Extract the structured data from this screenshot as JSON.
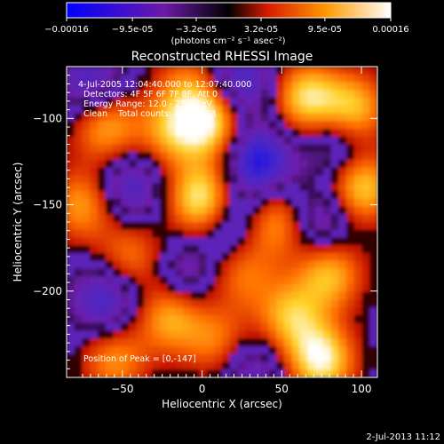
{
  "colorbar": {
    "tick_labels": [
      "-0.00016",
      "-9.5e-05",
      "-3.2e-05",
      "3.2e-05",
      "9.5e-05",
      "0.00016"
    ],
    "tick_values": [
      -0.00016,
      -9.5e-05,
      -3.2e-05,
      3.2e-05,
      9.5e-05,
      0.00016
    ],
    "range": [
      -0.00016,
      0.00016
    ],
    "units": "(photons cm⁻² s⁻¹ asec⁻²)",
    "colormap": [
      "#0000ff",
      "#6c1aa8",
      "#d81a00",
      "#ff9900",
      "#ffffff"
    ]
  },
  "footer": {
    "date": "2-Jul-2013 11:12"
  },
  "chart_data": {
    "type": "heatmap",
    "title": "Reconstructed RHESSI Image",
    "xlabel": "Heliocentric X (arcsec)",
    "ylabel": "Heliocentric Y (arcsec)",
    "xlim": [
      -85,
      110
    ],
    "ylim": [
      -250,
      -70
    ],
    "x_ticks": [
      -50,
      0,
      50,
      100
    ],
    "y_ticks": [
      -100,
      -150,
      -200
    ],
    "annotations": [
      "4-Jul-2005 12:04:40.000 to 12:07:40.000",
      "Detectors: 4F 5F 6F 7F 8F, Att 0",
      "Energy Range: 12.0 - 25.0 keV",
      "Clean    Total counts: 4.02E+03"
    ],
    "peak_label": "Position of Peak = [0,-147]",
    "peak": [
      0,
      -147
    ],
    "sources": [
      {
        "x": 0,
        "y": -147,
        "v": 1.0
      },
      {
        "x": 5,
        "y": -102,
        "v": 0.9
      },
      {
        "x": -20,
        "y": -108,
        "v": 0.6
      },
      {
        "x": 65,
        "y": -88,
        "v": 0.85
      },
      {
        "x": 95,
        "y": -95,
        "v": 0.8
      },
      {
        "x": 100,
        "y": -140,
        "v": 0.85
      },
      {
        "x": 80,
        "y": -190,
        "v": 0.75
      },
      {
        "x": 45,
        "y": -160,
        "v": 0.7
      },
      {
        "x": 55,
        "y": -215,
        "v": 0.7
      },
      {
        "x": 75,
        "y": -240,
        "v": 0.95
      },
      {
        "x": -60,
        "y": -105,
        "v": 0.7
      },
      {
        "x": -75,
        "y": -150,
        "v": 0.65
      },
      {
        "x": -45,
        "y": -180,
        "v": 0.55
      },
      {
        "x": -20,
        "y": -215,
        "v": 0.7
      },
      {
        "x": -55,
        "y": -240,
        "v": 0.6
      },
      {
        "x": 10,
        "y": -230,
        "v": 0.55
      },
      {
        "x": 25,
        "y": -190,
        "v": 0.5
      },
      {
        "x": -10,
        "y": -80,
        "v": 0.45
      },
      {
        "x": 35,
        "y": -125,
        "v": -0.8
      },
      {
        "x": 25,
        "y": -80,
        "v": -0.6
      },
      {
        "x": -45,
        "y": -140,
        "v": -0.55
      },
      {
        "x": -70,
        "y": -80,
        "v": -0.5
      },
      {
        "x": 75,
        "y": -160,
        "v": -0.5
      },
      {
        "x": -60,
        "y": -205,
        "v": -0.6
      },
      {
        "x": 20,
        "y": -160,
        "v": -0.5
      },
      {
        "x": 85,
        "y": -115,
        "v": -0.45
      },
      {
        "x": -10,
        "y": -190,
        "v": -0.4
      },
      {
        "x": 30,
        "y": -245,
        "v": -0.45
      }
    ]
  }
}
